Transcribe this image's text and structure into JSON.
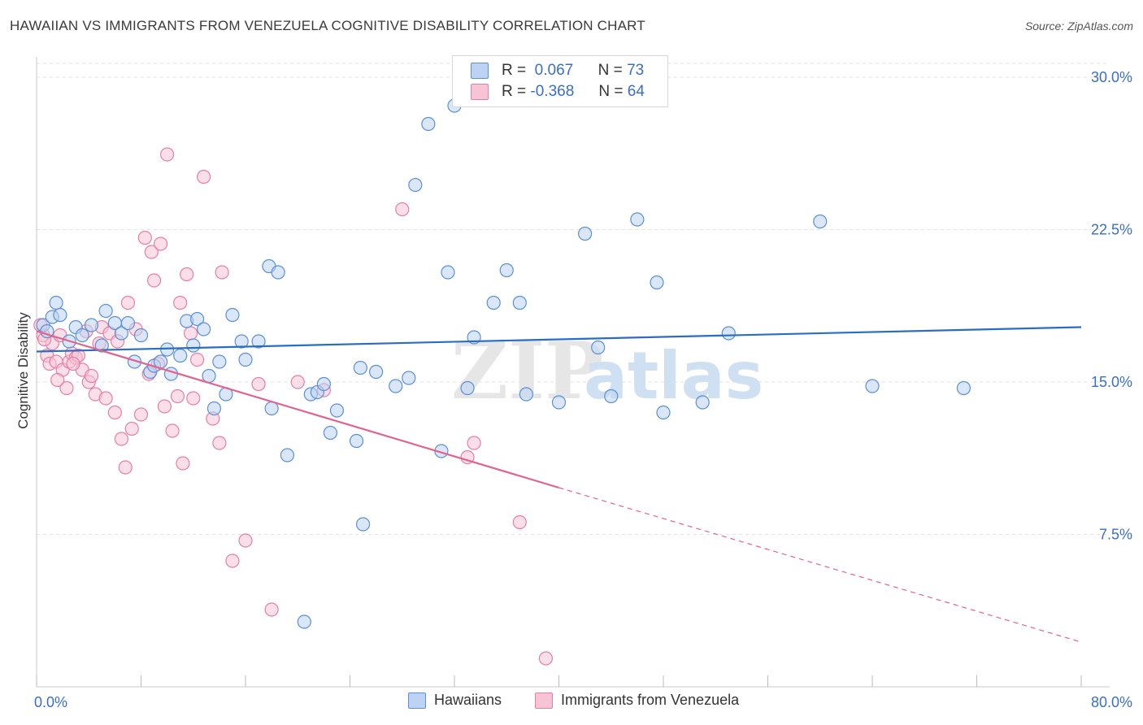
{
  "header": {
    "title": "HAWAIIAN VS IMMIGRANTS FROM VENEZUELA COGNITIVE DISABILITY CORRELATION CHART",
    "source": "Source: ZipAtlas.com"
  },
  "colors": {
    "blue": "#5b8fd6",
    "blue_fill": "#bcd3f3",
    "blue_line": "#2b6cc4",
    "pink": "#e77fa5",
    "pink_fill": "#f7c4d6",
    "pink_line": "#e0648f",
    "axis_label": "#3a6fc4",
    "grid": "#e2e2e2"
  },
  "legend": {
    "rows": [
      {
        "r_label": "R =",
        "r_value": "0.067",
        "n_label": "N =",
        "n_value": "73"
      },
      {
        "r_label": "R =",
        "r_value": "-0.368",
        "n_label": "N =",
        "n_value": "64"
      }
    ]
  },
  "watermark": {
    "zip": "ZIP",
    "atlas": "atlas"
  },
  "chart_data": {
    "type": "scatter",
    "ylabel": "Cognitive Disability",
    "xlim": [
      0,
      80
    ],
    "ylim": [
      0,
      31
    ],
    "x_tick_labels": [
      "0.0%",
      "80.0%"
    ],
    "y_ticks": [
      7.5,
      15.0,
      22.5,
      30.0
    ],
    "y_tick_labels": [
      "7.5%",
      "15.0%",
      "22.5%",
      "30.0%"
    ],
    "grid": "horizontal dashed",
    "series": [
      {
        "name": "Hawaiians",
        "trend": {
          "x": [
            0,
            80
          ],
          "y": [
            16.5,
            17.7
          ]
        },
        "points": [
          [
            0.5,
            17.8
          ],
          [
            0.8,
            17.5
          ],
          [
            1.2,
            18.2
          ],
          [
            1.5,
            18.9
          ],
          [
            1.8,
            18.3
          ],
          [
            2.5,
            17.0
          ],
          [
            3.0,
            17.7
          ],
          [
            3.5,
            17.3
          ],
          [
            4.2,
            17.8
          ],
          [
            5.0,
            16.8
          ],
          [
            5.3,
            18.5
          ],
          [
            6.0,
            17.9
          ],
          [
            6.5,
            17.4
          ],
          [
            7.0,
            17.9
          ],
          [
            7.5,
            16.0
          ],
          [
            8.0,
            17.3
          ],
          [
            8.7,
            15.5
          ],
          [
            9.0,
            15.8
          ],
          [
            9.5,
            16.0
          ],
          [
            10.0,
            16.6
          ],
          [
            10.3,
            15.4
          ],
          [
            11.0,
            16.3
          ],
          [
            11.5,
            18.0
          ],
          [
            12.0,
            16.8
          ],
          [
            12.3,
            18.1
          ],
          [
            12.8,
            17.6
          ],
          [
            13.2,
            15.3
          ],
          [
            13.6,
            13.7
          ],
          [
            14.0,
            16.0
          ],
          [
            14.5,
            14.4
          ],
          [
            15.0,
            18.3
          ],
          [
            15.7,
            17.0
          ],
          [
            16.0,
            16.1
          ],
          [
            17.0,
            17.0
          ],
          [
            17.8,
            20.7
          ],
          [
            18.0,
            13.7
          ],
          [
            18.5,
            20.4
          ],
          [
            19.2,
            11.4
          ],
          [
            20.5,
            3.2
          ],
          [
            21.0,
            14.4
          ],
          [
            21.5,
            14.5
          ],
          [
            22.0,
            14.9
          ],
          [
            22.5,
            12.5
          ],
          [
            23.0,
            13.6
          ],
          [
            24.5,
            12.1
          ],
          [
            24.8,
            15.7
          ],
          [
            25.0,
            8.0
          ],
          [
            26.0,
            15.5
          ],
          [
            27.5,
            14.8
          ],
          [
            28.5,
            15.2
          ],
          [
            29.0,
            24.7
          ],
          [
            30.0,
            27.7
          ],
          [
            31.0,
            11.6
          ],
          [
            31.5,
            20.4
          ],
          [
            32.0,
            28.6
          ],
          [
            33.0,
            14.7
          ],
          [
            33.5,
            17.2
          ],
          [
            35.0,
            18.9
          ],
          [
            36.0,
            20.5
          ],
          [
            37.0,
            18.9
          ],
          [
            37.5,
            14.4
          ],
          [
            40.0,
            14.0
          ],
          [
            42.0,
            22.3
          ],
          [
            43.0,
            16.7
          ],
          [
            44.0,
            14.3
          ],
          [
            46.0,
            23.0
          ],
          [
            47.5,
            19.9
          ],
          [
            48.0,
            13.5
          ],
          [
            51.0,
            14.0
          ],
          [
            53.0,
            17.4
          ],
          [
            60.0,
            22.9
          ],
          [
            64.0,
            14.8
          ],
          [
            71.0,
            14.7
          ]
        ]
      },
      {
        "name": "Immigrants from Venezuela",
        "trend": {
          "x": [
            0,
            40
          ],
          "y": [
            17.5,
            9.8
          ]
        },
        "trend_dashed": {
          "x": [
            40,
            80
          ],
          "y": [
            9.8,
            2.2
          ]
        },
        "points": [
          [
            0.5,
            17.3
          ],
          [
            0.8,
            16.3
          ],
          [
            1.0,
            15.9
          ],
          [
            1.2,
            16.9
          ],
          [
            1.5,
            16.0
          ],
          [
            1.8,
            17.3
          ],
          [
            2.0,
            15.6
          ],
          [
            2.3,
            14.7
          ],
          [
            2.5,
            16.0
          ],
          [
            2.7,
            16.4
          ],
          [
            3.0,
            16.2
          ],
          [
            3.2,
            16.3
          ],
          [
            3.5,
            15.6
          ],
          [
            3.8,
            17.5
          ],
          [
            4.0,
            15.0
          ],
          [
            4.2,
            15.3
          ],
          [
            4.5,
            14.4
          ],
          [
            4.8,
            16.9
          ],
          [
            5.0,
            17.7
          ],
          [
            5.3,
            14.2
          ],
          [
            5.6,
            17.4
          ],
          [
            6.0,
            13.5
          ],
          [
            6.2,
            17.0
          ],
          [
            6.5,
            12.2
          ],
          [
            6.8,
            10.8
          ],
          [
            7.0,
            18.9
          ],
          [
            7.3,
            12.7
          ],
          [
            7.6,
            17.6
          ],
          [
            8.0,
            13.4
          ],
          [
            8.3,
            22.1
          ],
          [
            8.6,
            15.4
          ],
          [
            8.8,
            21.4
          ],
          [
            9.0,
            20.0
          ],
          [
            9.3,
            15.9
          ],
          [
            9.5,
            21.8
          ],
          [
            9.8,
            13.8
          ],
          [
            10.0,
            26.2
          ],
          [
            10.4,
            12.6
          ],
          [
            10.8,
            14.3
          ],
          [
            11.0,
            18.9
          ],
          [
            11.2,
            11.0
          ],
          [
            11.5,
            20.3
          ],
          [
            11.8,
            17.4
          ],
          [
            12.0,
            14.2
          ],
          [
            12.3,
            16.1
          ],
          [
            12.8,
            25.1
          ],
          [
            13.5,
            13.2
          ],
          [
            14.0,
            12.0
          ],
          [
            14.2,
            20.4
          ],
          [
            15.0,
            6.2
          ],
          [
            16.0,
            7.2
          ],
          [
            17.0,
            14.9
          ],
          [
            18.0,
            3.8
          ],
          [
            20.0,
            15.0
          ],
          [
            22.0,
            14.6
          ],
          [
            28.0,
            23.5
          ],
          [
            33.0,
            11.3
          ],
          [
            33.5,
            12.0
          ],
          [
            37.0,
            8.1
          ],
          [
            39.0,
            1.4
          ],
          [
            0.3,
            17.8
          ],
          [
            0.6,
            17.1
          ],
          [
            1.6,
            15.1
          ],
          [
            2.8,
            15.9
          ]
        ]
      }
    ]
  }
}
